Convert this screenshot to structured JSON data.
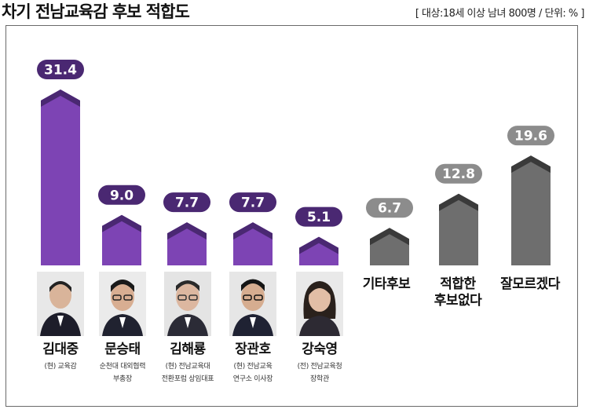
{
  "header": {
    "title": "차기 전남교육감 후보 적합도",
    "note": "[ 대상:18세 이상 남녀 800명 / 단위: % ]"
  },
  "chart_data": {
    "type": "bar",
    "title": "차기 전남교육감 후보 적합도",
    "unit": "%",
    "categories": [
      "김대중",
      "문승태",
      "김해룡",
      "장관호",
      "강숙영",
      "기타후보",
      "적합한\n후보없다",
      "잘모르겠다"
    ],
    "values": [
      31.4,
      9.0,
      7.7,
      7.7,
      5.1,
      6.7,
      12.8,
      19.6
    ],
    "value_labels": [
      "31.4",
      "9.0",
      "7.7",
      "7.7",
      "5.1",
      "6.7",
      "12.8",
      "19.6"
    ],
    "ylim": [
      0,
      31.4
    ],
    "grid": false,
    "legend": "none"
  },
  "candidates": [
    {
      "name": "김대중",
      "desc": [
        "(현) 교육감"
      ]
    },
    {
      "name": "문승태",
      "desc": [
        "순천대 대외협력",
        "부총장"
      ]
    },
    {
      "name": "김해룡",
      "desc": [
        "(현) 전남교육대",
        "전환포럼 상임대표"
      ]
    },
    {
      "name": "장관호",
      "desc": [
        "(현) 전남교육",
        "연구소 이사장"
      ]
    },
    {
      "name": "강숙영",
      "desc": [
        "(전) 전남교육청",
        "장학관"
      ]
    }
  ],
  "others": [
    {
      "label_lines": [
        "기타후보"
      ]
    },
    {
      "label_lines": [
        "적합한",
        "후보없다"
      ]
    },
    {
      "label_lines": [
        "잘모르겠다"
      ]
    }
  ],
  "colors": {
    "candidate_bar": "#7d44b4",
    "candidate_top": "#4a2872",
    "candidate_pill": "#4a2872",
    "other_bar": "#6e6e6e",
    "other_top": "#3a3a3a",
    "other_pill": "#8c8c8c"
  }
}
